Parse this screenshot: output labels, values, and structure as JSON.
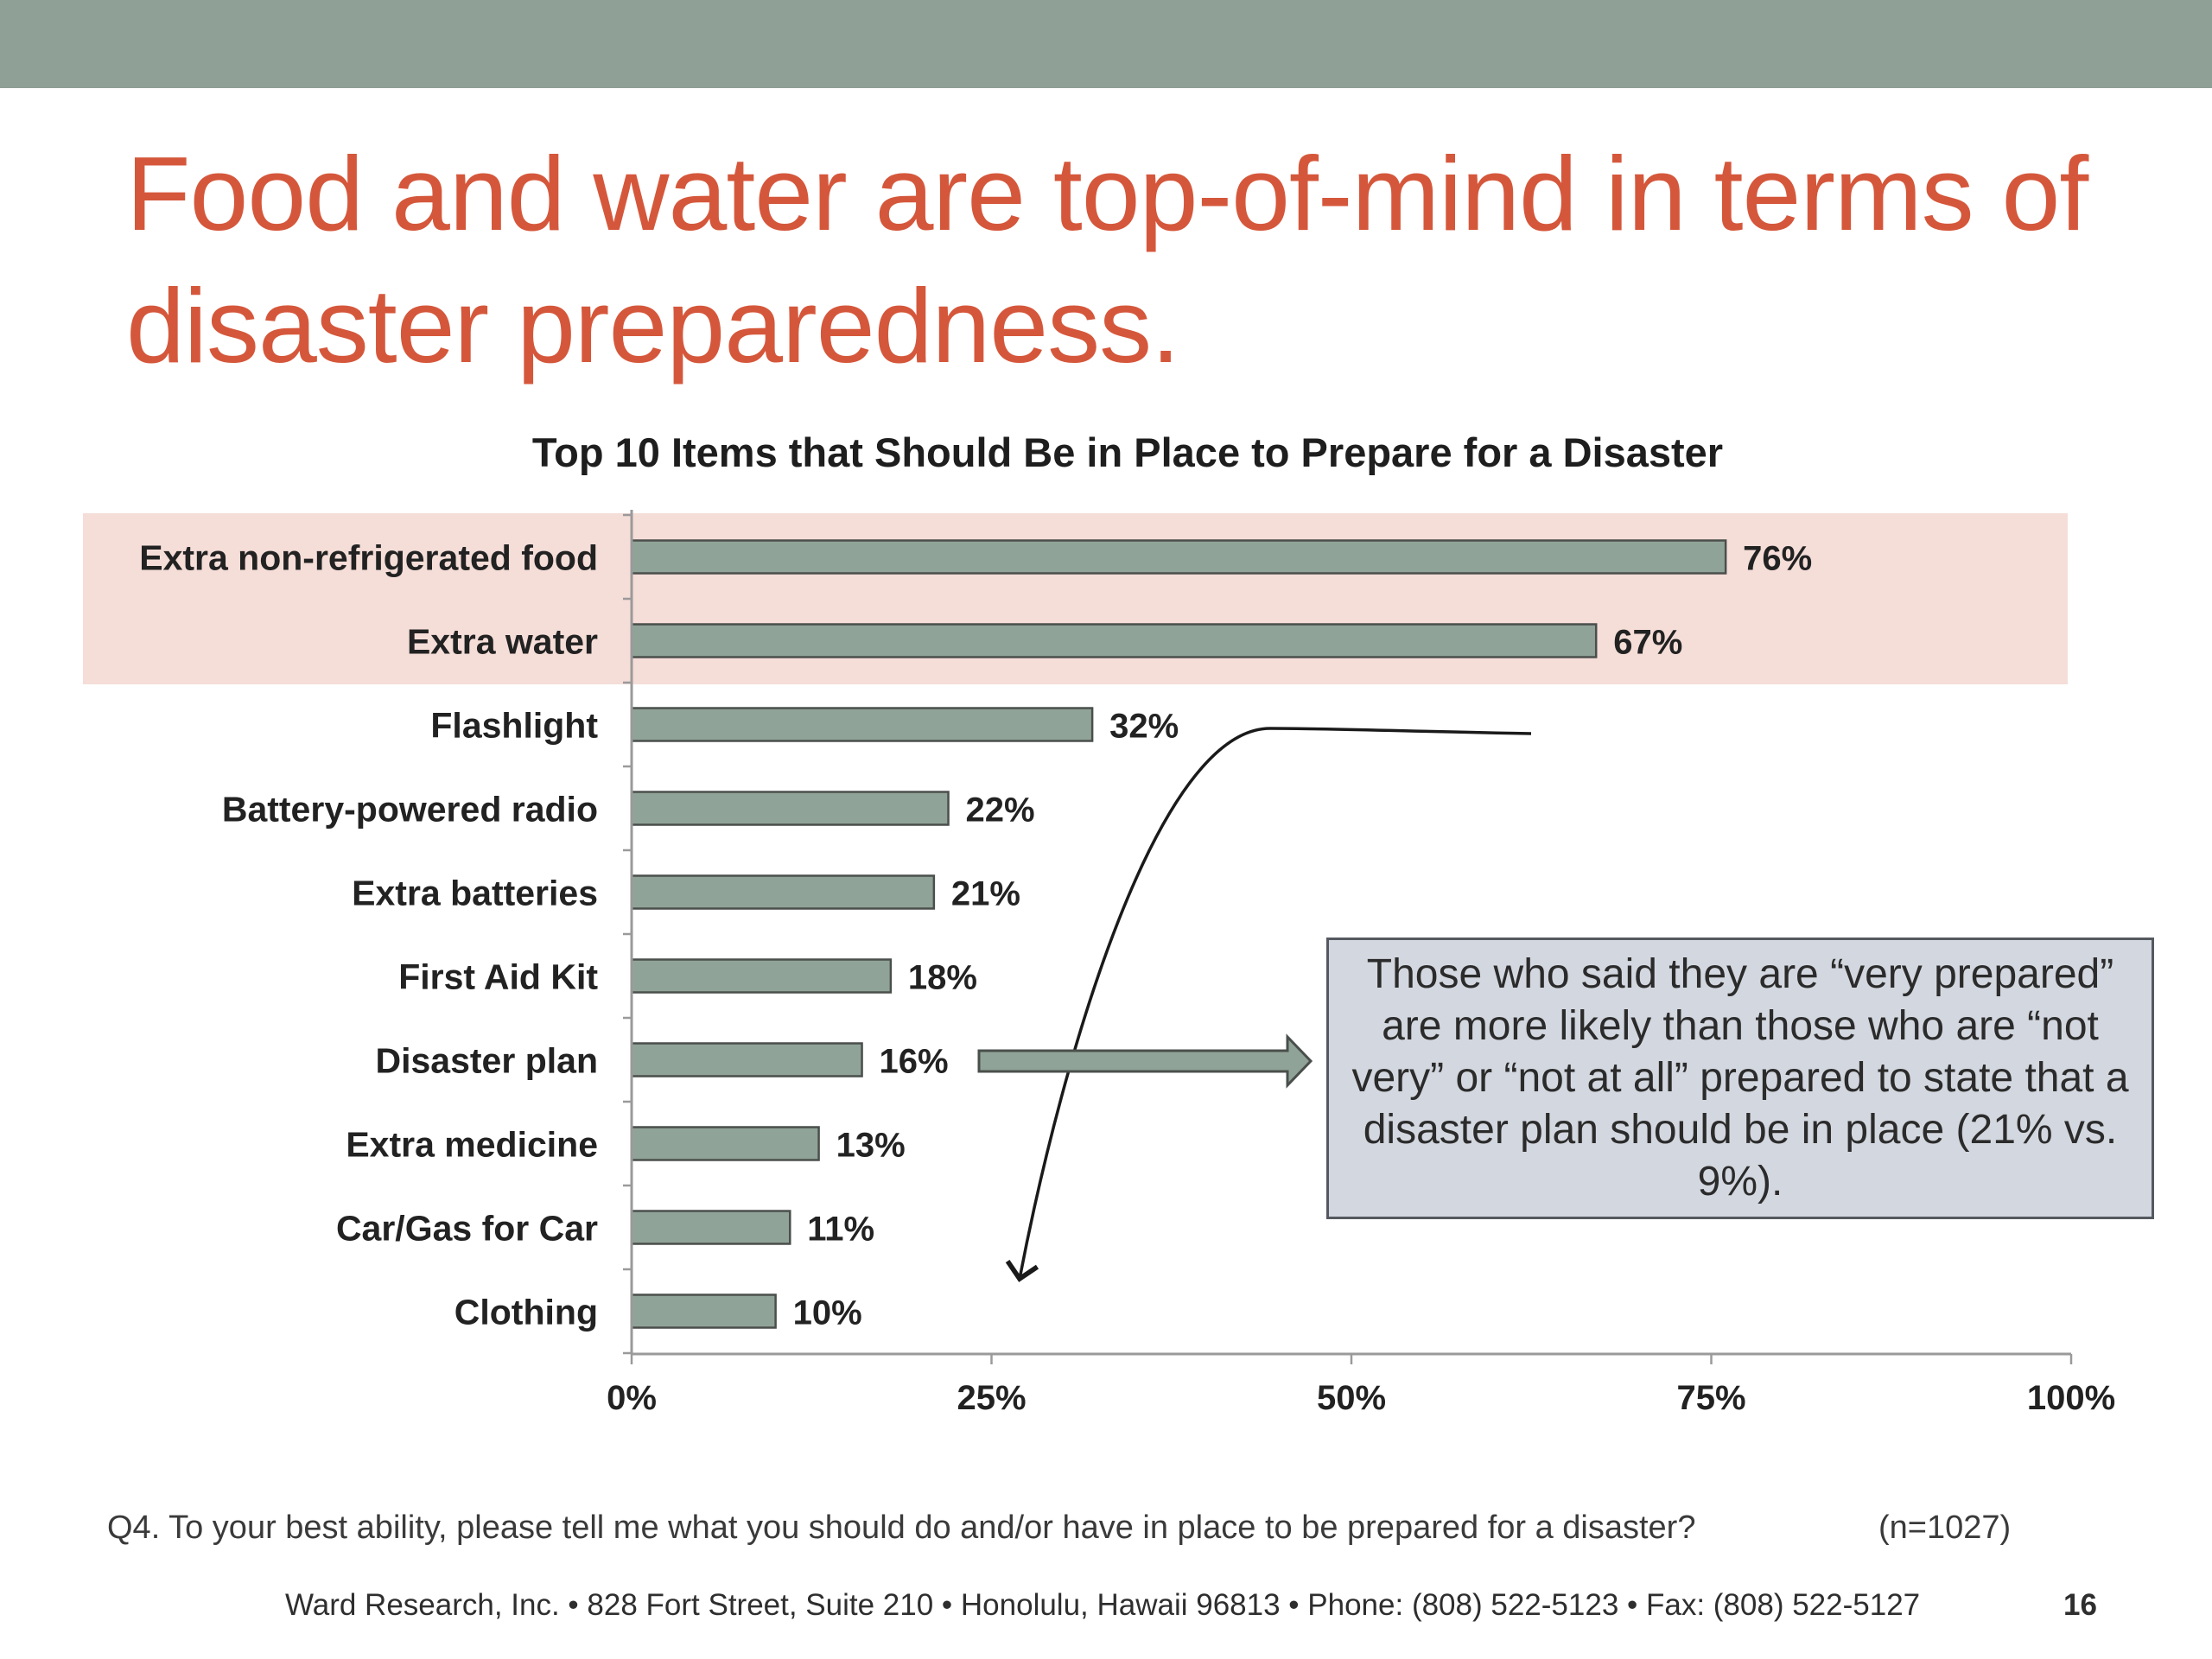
{
  "slide": {
    "headline": "Food and water are top-of-mind in terms of disaster preparedness.",
    "footnote": "Q4. To your best ability, please tell me what you should do and/or have in place to be prepared for a disaster?",
    "sample_size": "(n=1027)",
    "contact_line": "Ward Research, Inc. • 828 Fort Street, Suite 210 • Honolulu, Hawaii 96813 • Phone: (808) 522-5123 • Fax: (808) 522-5127",
    "page_number": "16",
    "callout_text": "Those who said they are “very prepared” are more likely than those who are “not very” or “not at all” prepared to state that a disaster plan should be in place (21% vs. 9%)."
  },
  "colors": {
    "band": "#8fa096",
    "headline": "#d5573b",
    "bar_fill": "#90a398",
    "bar_stroke": "#4a4f4c",
    "highlight": "#f5ddd8",
    "callout_bg": "#d3d7df"
  },
  "chart_data": {
    "type": "bar",
    "orientation": "horizontal",
    "title": "Top 10 Items that Should Be in Place to Prepare for a Disaster",
    "categories": [
      "Extra non-refrigerated food",
      "Extra water",
      "Flashlight",
      "Battery-powered radio",
      "Extra batteries",
      "First Aid Kit",
      "Disaster plan",
      "Extra medicine",
      "Car/Gas for Car",
      "Clothing"
    ],
    "values": [
      76,
      67,
      32,
      22,
      21,
      18,
      16,
      13,
      11,
      10
    ],
    "data_labels": [
      "76%",
      "67%",
      "32%",
      "22%",
      "21%",
      "18%",
      "16%",
      "13%",
      "11%",
      "10%"
    ],
    "xlim": [
      0,
      100
    ],
    "x_ticks": [
      0,
      25,
      50,
      75,
      100
    ],
    "x_tick_labels": [
      "0%",
      "25%",
      "50%",
      "75%",
      "100%"
    ],
    "highlighted_categories": [
      "Extra non-refrigerated food",
      "Extra water"
    ],
    "callout_category": "Disaster plan",
    "grid": false,
    "legend": "none"
  }
}
